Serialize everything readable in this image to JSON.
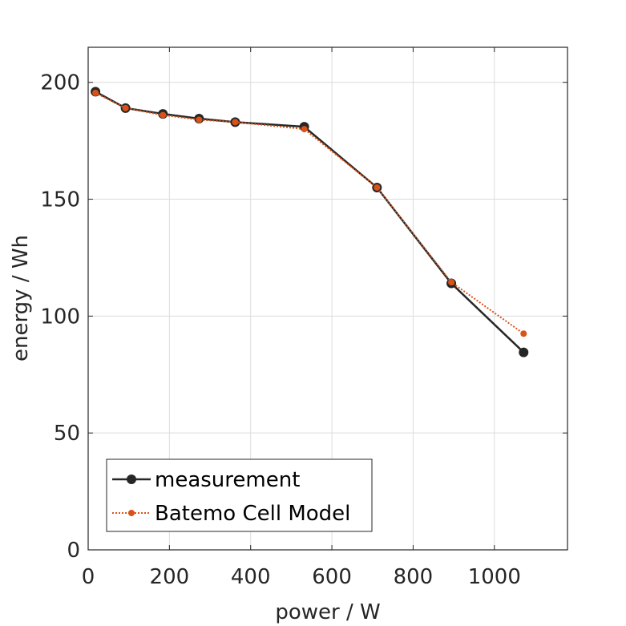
{
  "chart_data": {
    "type": "line",
    "title": "",
    "xlabel": "power / W",
    "ylabel": "energy / Wh",
    "xlim": [
      0,
      1180
    ],
    "ylim": [
      0,
      215
    ],
    "xticks": [
      0,
      200,
      400,
      600,
      800,
      1000
    ],
    "yticks": [
      0,
      50,
      100,
      150,
      200
    ],
    "grid": true,
    "legend_position": "bottom-left",
    "series": [
      {
        "name": "measurement",
        "color": "#262626",
        "style": "solid",
        "marker": "circle-large",
        "x": [
          18,
          92,
          184,
          273,
          362,
          532,
          711,
          894,
          1072
        ],
        "y": [
          196,
          189,
          186.5,
          184.5,
          183,
          181,
          155,
          114,
          84.5
        ]
      },
      {
        "name": "Batemo Cell Model",
        "color": "#D95319",
        "style": "dotted",
        "marker": "circle-small",
        "x": [
          18,
          92,
          184,
          273,
          362,
          532,
          711,
          894,
          1072
        ],
        "y": [
          195.5,
          189,
          186,
          184,
          183,
          180,
          155,
          114.5,
          92.5
        ]
      }
    ]
  }
}
